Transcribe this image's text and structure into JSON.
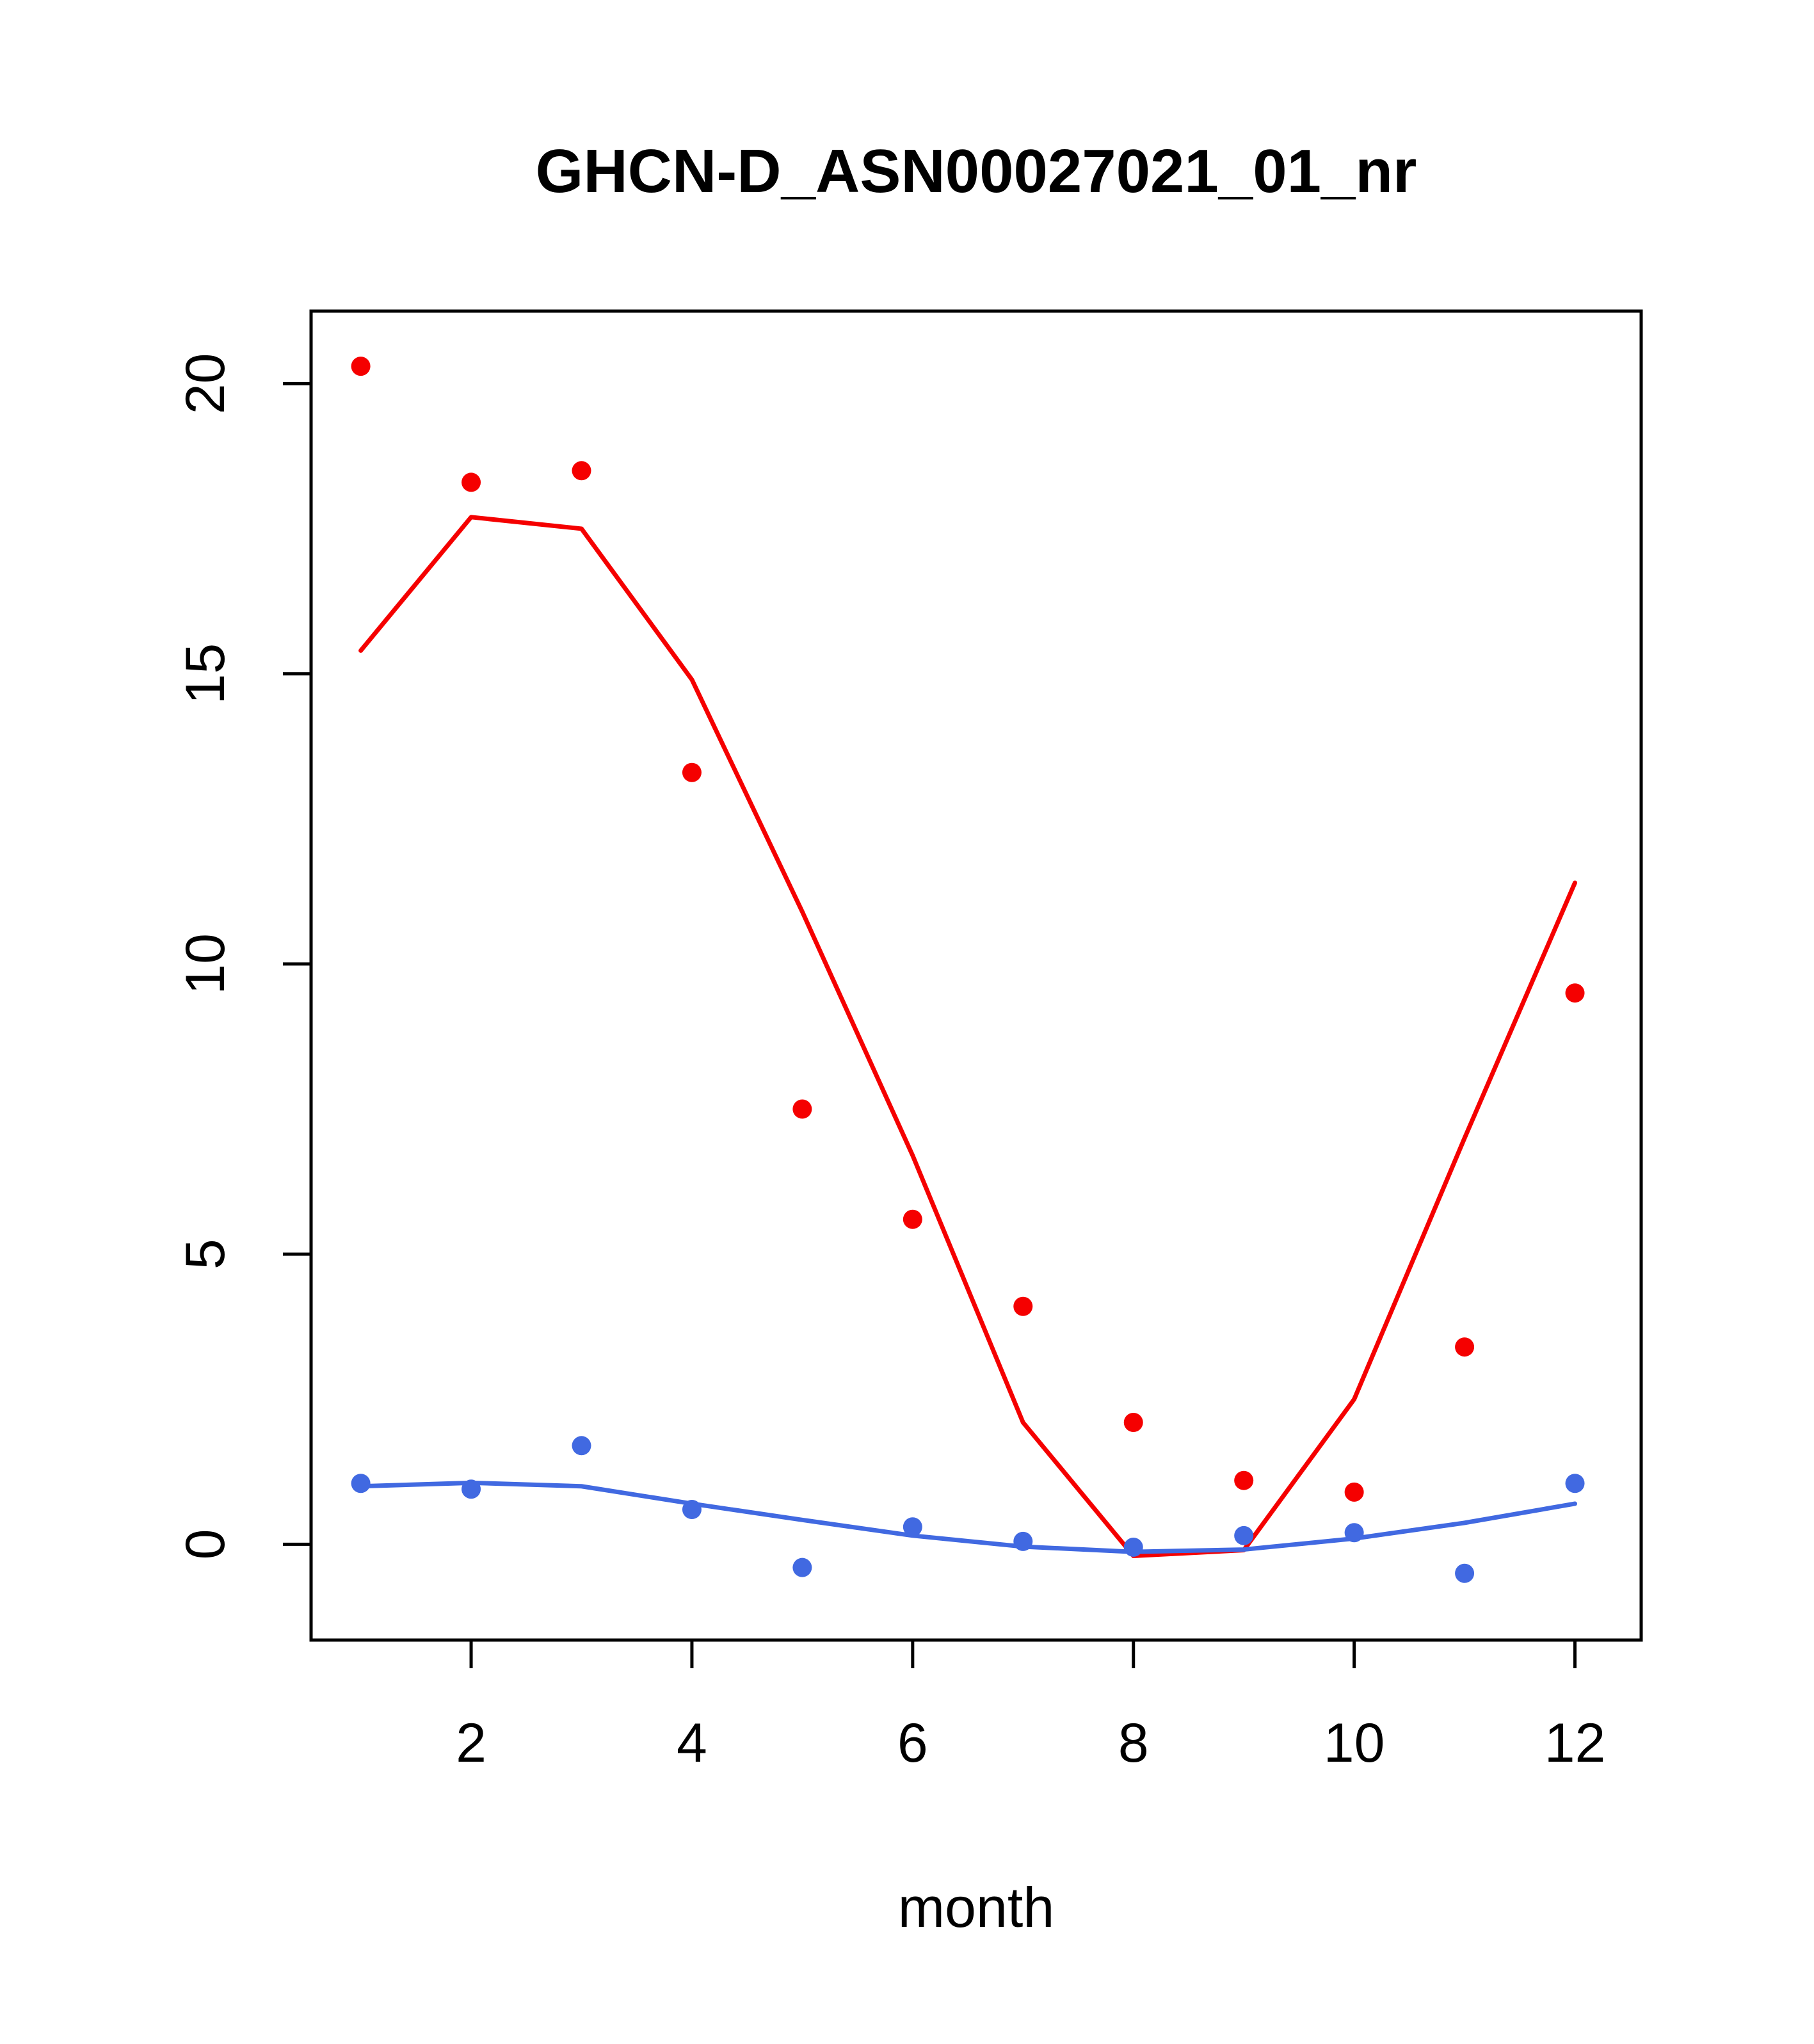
{
  "chart_data": {
    "type": "scatter",
    "title": "GHCN-D_ASN00027021_01_nr",
    "xlabel": "month",
    "ylabel": "",
    "x": [
      1,
      2,
      3,
      4,
      5,
      6,
      7,
      8,
      9,
      10,
      11,
      12
    ],
    "xticks": [
      2,
      4,
      6,
      8,
      10,
      12
    ],
    "yticks": [
      0,
      5,
      10,
      15,
      20
    ],
    "xlim": [
      0.55,
      12.6
    ],
    "ylim": [
      -1.65,
      21.25
    ],
    "grid": false,
    "legend": "none",
    "colors": {
      "red": "#f50000",
      "blue": "#4169e1",
      "axis": "#000000"
    },
    "series": [
      {
        "name": "red-points",
        "type": "points",
        "color": "#f50000",
        "values": [
          20.3,
          18.3,
          18.5,
          13.3,
          7.5,
          5.6,
          4.1,
          2.1,
          1.1,
          0.9,
          3.4,
          9.5
        ]
      },
      {
        "name": "red-fit-line",
        "type": "line",
        "color": "#f50000",
        "values": [
          15.4,
          17.7,
          17.5,
          14.9,
          10.9,
          6.7,
          2.1,
          -0.2,
          -0.1,
          2.5,
          7.0,
          11.4
        ]
      },
      {
        "name": "blue-points",
        "type": "points",
        "color": "#4169e1",
        "values": [
          1.05,
          0.95,
          1.7,
          0.6,
          -0.4,
          0.3,
          0.05,
          -0.05,
          0.15,
          0.2,
          -0.5,
          1.05
        ]
      },
      {
        "name": "blue-fit-line",
        "type": "line",
        "color": "#4169e1",
        "values": [
          1.0,
          1.06,
          1.0,
          0.7,
          0.42,
          0.15,
          -0.04,
          -0.13,
          -0.09,
          0.1,
          0.37,
          0.7
        ]
      }
    ]
  }
}
